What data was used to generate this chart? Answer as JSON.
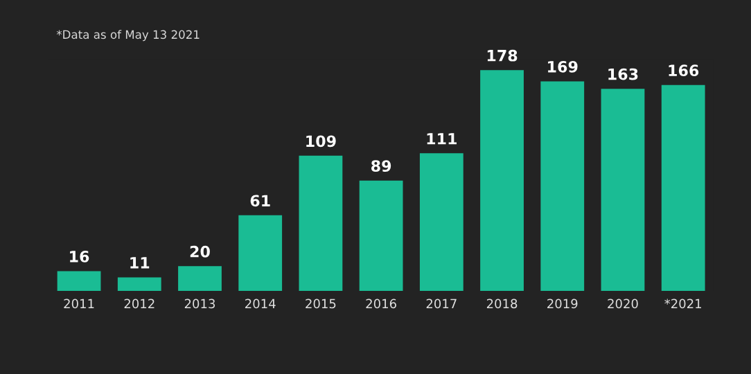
{
  "chart_data": {
    "type": "bar",
    "categories": [
      "2011",
      "2012",
      "2013",
      "2014",
      "2015",
      "2016",
      "2017",
      "2018",
      "2019",
      "2020",
      "*2021"
    ],
    "values": [
      16,
      11,
      20,
      61,
      109,
      89,
      111,
      178,
      169,
      163,
      166
    ],
    "color": "#1abc94",
    "data_labels": true,
    "tick_labels": "x",
    "annotations": [
      "*Data as of May 13 2021"
    ]
  }
}
